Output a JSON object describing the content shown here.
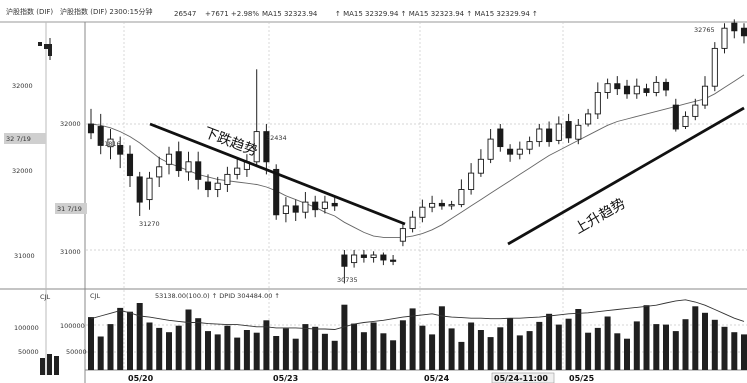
{
  "header": {
    "title_left": "沪股指数 (DIF)",
    "title_right": "沪股指数 (DIF) 2300:15分钟",
    "status_1": "26547",
    "status_2": "+7671 +2.98%",
    "ma_text": "MA15 32323.94",
    "ma_extra": "↑ MA15 32329.94 ↑ MA15 32323.94 ↑ MA15 32329.94 ↑"
  },
  "axis": {
    "price_ticks": [
      "32000",
      "32000",
      "31000",
      "31000"
    ],
    "price_box_1": "32 7/19",
    "price_box_2": "31 7/19",
    "vol_ticks": [
      "100000",
      "50000"
    ],
    "vol_ticks_inner": [
      "100000",
      "50000"
    ],
    "cjl_left": "CJL",
    "cjl_label": "CJL",
    "vol_info": "53138.00(100.0)  ↑    DPID   304484.00  ↑",
    "dates": [
      "05/20",
      "05/23",
      "05/24",
      "05/24-11:00",
      "05/25"
    ]
  },
  "annotations": {
    "down_trend": "下跌趋势",
    "up_trend": "上升趋势",
    "price_31816": "31816",
    "price_32434": "32434",
    "price_31270": "31270",
    "price_30735": "30735",
    "price_32765": "32765"
  },
  "chart_data": {
    "type": "candlestick",
    "ylim": [
      30700,
      32900
    ],
    "candles": [
      {
        "o": 32000,
        "c": 31930,
        "h": 32120,
        "l": 31880
      },
      {
        "o": 31980,
        "c": 31830,
        "h": 32080,
        "l": 31760
      },
      {
        "o": 31820,
        "c": 31880,
        "h": 31960,
        "l": 31720
      },
      {
        "o": 31830,
        "c": 31760,
        "h": 31900,
        "l": 31650
      },
      {
        "o": 31760,
        "c": 31590,
        "h": 31830,
        "l": 31500
      },
      {
        "o": 31580,
        "c": 31380,
        "h": 31620,
        "l": 31270
      },
      {
        "o": 31400,
        "c": 31570,
        "h": 31620,
        "l": 31320
      },
      {
        "o": 31580,
        "c": 31660,
        "h": 31740,
        "l": 31500
      },
      {
        "o": 31680,
        "c": 31760,
        "h": 31820,
        "l": 31600
      },
      {
        "o": 31780,
        "c": 31630,
        "h": 31860,
        "l": 31580
      },
      {
        "o": 31620,
        "c": 31700,
        "h": 31780,
        "l": 31550
      },
      {
        "o": 31700,
        "c": 31560,
        "h": 31780,
        "l": 31480
      },
      {
        "o": 31540,
        "c": 31480,
        "h": 31600,
        "l": 31420
      },
      {
        "o": 31480,
        "c": 31530,
        "h": 31580,
        "l": 31420
      },
      {
        "o": 31520,
        "c": 31600,
        "h": 31660,
        "l": 31460
      },
      {
        "o": 31600,
        "c": 31650,
        "h": 31720,
        "l": 31560
      },
      {
        "o": 31640,
        "c": 31700,
        "h": 31760,
        "l": 31580
      },
      {
        "o": 31700,
        "c": 31940,
        "h": 32434,
        "l": 31660
      },
      {
        "o": 31940,
        "c": 31700,
        "h": 32000,
        "l": 31600
      },
      {
        "o": 31640,
        "c": 31280,
        "h": 31680,
        "l": 31240
      },
      {
        "o": 31290,
        "c": 31350,
        "h": 31420,
        "l": 31220
      },
      {
        "o": 31350,
        "c": 31300,
        "h": 31400,
        "l": 31230
      },
      {
        "o": 31300,
        "c": 31380,
        "h": 31460,
        "l": 31250
      },
      {
        "o": 31380,
        "c": 31320,
        "h": 31430,
        "l": 31260
      },
      {
        "o": 31330,
        "c": 31380,
        "h": 31430,
        "l": 31290
      },
      {
        "o": 31370,
        "c": 31350,
        "h": 31420,
        "l": 31310
      },
      {
        "o": 30960,
        "c": 30870,
        "h": 31000,
        "l": 30735
      },
      {
        "o": 30900,
        "c": 30960,
        "h": 31000,
        "l": 30860
      },
      {
        "o": 30960,
        "c": 30940,
        "h": 31000,
        "l": 30900
      },
      {
        "o": 30940,
        "c": 30960,
        "h": 30990,
        "l": 30900
      },
      {
        "o": 30960,
        "c": 30920,
        "h": 30980,
        "l": 30880
      },
      {
        "o": 30920,
        "c": 30910,
        "h": 30960,
        "l": 30880
      },
      {
        "o": 31070,
        "c": 31170,
        "h": 31220,
        "l": 31030
      },
      {
        "o": 31170,
        "c": 31260,
        "h": 31310,
        "l": 31140
      },
      {
        "o": 31260,
        "c": 31340,
        "h": 31400,
        "l": 31220
      },
      {
        "o": 31340,
        "c": 31370,
        "h": 31430,
        "l": 31300
      },
      {
        "o": 31370,
        "c": 31350,
        "h": 31400,
        "l": 31320
      },
      {
        "o": 31350,
        "c": 31360,
        "h": 31390,
        "l": 31320
      },
      {
        "o": 31360,
        "c": 31480,
        "h": 31560,
        "l": 31340
      },
      {
        "o": 31480,
        "c": 31610,
        "h": 31690,
        "l": 31440
      },
      {
        "o": 31610,
        "c": 31720,
        "h": 31800,
        "l": 31580
      },
      {
        "o": 31720,
        "c": 31880,
        "h": 31960,
        "l": 31690
      },
      {
        "o": 31960,
        "c": 31820,
        "h": 32000,
        "l": 31780
      },
      {
        "o": 31800,
        "c": 31760,
        "h": 31840,
        "l": 31700
      },
      {
        "o": 31760,
        "c": 31800,
        "h": 31860,
        "l": 31720
      },
      {
        "o": 31800,
        "c": 31860,
        "h": 31900,
        "l": 31760
      },
      {
        "o": 31860,
        "c": 31960,
        "h": 32000,
        "l": 31820
      },
      {
        "o": 31960,
        "c": 31860,
        "h": 32020,
        "l": 31820
      },
      {
        "o": 31870,
        "c": 32000,
        "h": 32060,
        "l": 31840
      },
      {
        "o": 32020,
        "c": 31890,
        "h": 32080,
        "l": 31850
      },
      {
        "o": 31880,
        "c": 31990,
        "h": 32040,
        "l": 31840
      },
      {
        "o": 32000,
        "c": 32080,
        "h": 32120,
        "l": 31980
      },
      {
        "o": 32080,
        "c": 32250,
        "h": 32330,
        "l": 32040
      },
      {
        "o": 32250,
        "c": 32320,
        "h": 32360,
        "l": 32200
      },
      {
        "o": 32320,
        "c": 32280,
        "h": 32380,
        "l": 32230
      },
      {
        "o": 32300,
        "c": 32240,
        "h": 32350,
        "l": 32200
      },
      {
        "o": 32240,
        "c": 32300,
        "h": 32360,
        "l": 32200
      },
      {
        "o": 32280,
        "c": 32250,
        "h": 32320,
        "l": 32220
      },
      {
        "o": 32250,
        "c": 32330,
        "h": 32380,
        "l": 32220
      },
      {
        "o": 32330,
        "c": 32270,
        "h": 32360,
        "l": 32220
      },
      {
        "o": 32150,
        "c": 31960,
        "h": 32200,
        "l": 31940
      },
      {
        "o": 31980,
        "c": 32060,
        "h": 32100,
        "l": 31960
      },
      {
        "o": 32060,
        "c": 32150,
        "h": 32200,
        "l": 32030
      },
      {
        "o": 32150,
        "c": 32300,
        "h": 32380,
        "l": 32120
      },
      {
        "o": 32300,
        "c": 32600,
        "h": 32650,
        "l": 32260
      },
      {
        "o": 32600,
        "c": 32760,
        "h": 32800,
        "l": 32560
      },
      {
        "o": 32800,
        "c": 32740,
        "h": 32830,
        "l": 32680
      },
      {
        "o": 32760,
        "c": 32700,
        "h": 32800,
        "l": 32640
      }
    ],
    "ma_path": [
      32000,
      31990,
      31970,
      31940,
      31900,
      31850,
      31790,
      31730,
      31690,
      31660,
      31630,
      31600,
      31580,
      31560,
      31550,
      31540,
      31530,
      31520,
      31500,
      31470,
      31430,
      31400,
      31370,
      31340,
      31300,
      31270,
      31220,
      31180,
      31140,
      31110,
      31100,
      31100,
      31100,
      31110,
      31130,
      31160,
      31200,
      31250,
      31300,
      31350,
      31400,
      31450,
      31500,
      31550,
      31600,
      31650,
      31700,
      31750,
      31790,
      31830,
      31870,
      31910,
      31950,
      31990,
      32020,
      32040,
      32060,
      32080,
      32100,
      32120,
      32140,
      32160,
      32180,
      32200,
      32240,
      32290,
      32340,
      32390
    ],
    "volume_ylim": [
      0,
      150000
    ],
    "volume": [
      98000,
      62000,
      85000,
      115000,
      108000,
      124000,
      88000,
      78000,
      70000,
      82000,
      112000,
      96000,
      72000,
      66000,
      82000,
      60000,
      74000,
      69000,
      92000,
      63000,
      77000,
      58000,
      85000,
      80000,
      67000,
      54000,
      121000,
      86000,
      70000,
      88000,
      68000,
      55000,
      92000,
      114000,
      82000,
      66000,
      118000,
      77000,
      52000,
      88000,
      74000,
      61000,
      79000,
      96000,
      64000,
      72000,
      89000,
      104000,
      84000,
      95000,
      113000,
      69000,
      78000,
      99000,
      68000,
      58000,
      90000,
      120000,
      85000,
      84000,
      72000,
      94000,
      118000,
      106000,
      93000,
      80000,
      70000,
      66000
    ],
    "volume_line": [
      95000,
      100000,
      105000,
      110000,
      106000,
      100000,
      98000,
      95000,
      92000,
      90000,
      88000,
      88000,
      86000,
      85000,
      84000,
      84000,
      82000,
      80000,
      80000,
      78000,
      78000,
      78000,
      77000,
      76000,
      76000,
      75000,
      80000,
      85000,
      88000,
      90000,
      92000,
      95000,
      98000,
      100000,
      102000,
      104000,
      100000,
      98000,
      97000,
      96000,
      96000,
      95000,
      95000,
      96000,
      96000,
      97000,
      98000,
      100000,
      102000,
      104000,
      105000,
      106000,
      108000,
      110000,
      112000,
      114000,
      116000,
      118000,
      120000,
      124000,
      128000,
      130000,
      126000,
      120000,
      112000,
      104000,
      96000,
      90000
    ]
  }
}
